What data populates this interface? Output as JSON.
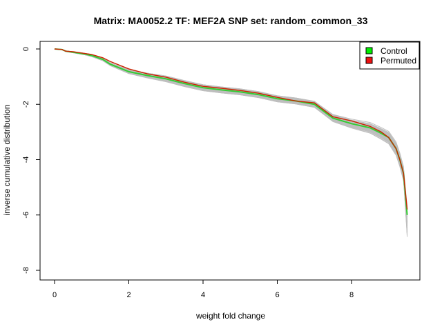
{
  "chart_data": {
    "type": "line",
    "title": "Matrix: MA0052.2 TF: MEF2A SNP set: random_common_33",
    "xlabel": "weight fold change",
    "ylabel": "inverse cumulative distribution",
    "xlim": [
      0,
      9.5
    ],
    "ylim": [
      -8,
      0
    ],
    "xticks": [
      0,
      2,
      4,
      6,
      8
    ],
    "yticks": [
      0,
      -2,
      -4,
      -6,
      -8
    ],
    "legend_position": "top-right",
    "legend": [
      {
        "label": "Control",
        "color": "#00ee00"
      },
      {
        "label": "Permuted",
        "color": "#ee1111"
      }
    ],
    "background_color": "#bebebe",
    "series": [
      {
        "name": "Control",
        "color": "#33cc33",
        "x": [
          0,
          0.2,
          0.3,
          0.5,
          0.8,
          1.0,
          1.3,
          1.5,
          2.0,
          2.5,
          3.0,
          3.5,
          4.0,
          4.5,
          5.0,
          5.5,
          6.0,
          6.5,
          7.0,
          7.2,
          7.5,
          8.0,
          8.5,
          8.8,
          9.0,
          9.2,
          9.3,
          9.4,
          9.5
        ],
        "y": [
          0,
          -0.02,
          -0.08,
          -0.12,
          -0.18,
          -0.24,
          -0.38,
          -0.55,
          -0.82,
          -0.96,
          -1.08,
          -1.25,
          -1.4,
          -1.48,
          -1.55,
          -1.65,
          -1.8,
          -1.88,
          -2.0,
          -2.2,
          -2.5,
          -2.7,
          -2.85,
          -3.05,
          -3.2,
          -3.6,
          -4.0,
          -4.5,
          -6.0
        ]
      },
      {
        "name": "Permuted",
        "color": "#cc2200",
        "x": [
          0,
          0.2,
          0.3,
          0.5,
          0.8,
          1.0,
          1.3,
          1.5,
          2.0,
          2.5,
          3.0,
          3.5,
          4.0,
          4.5,
          5.0,
          5.5,
          6.0,
          6.5,
          7.0,
          7.2,
          7.5,
          8.0,
          8.5,
          8.8,
          9.0,
          9.2,
          9.3,
          9.4,
          9.5
        ],
        "y": [
          0,
          -0.02,
          -0.08,
          -0.1,
          -0.16,
          -0.2,
          -0.32,
          -0.45,
          -0.72,
          -0.9,
          -1.02,
          -1.2,
          -1.35,
          -1.42,
          -1.5,
          -1.6,
          -1.75,
          -1.88,
          -1.95,
          -2.15,
          -2.45,
          -2.6,
          -2.8,
          -3.0,
          -3.2,
          -3.6,
          -4.0,
          -4.5,
          -5.8
        ]
      }
    ]
  }
}
